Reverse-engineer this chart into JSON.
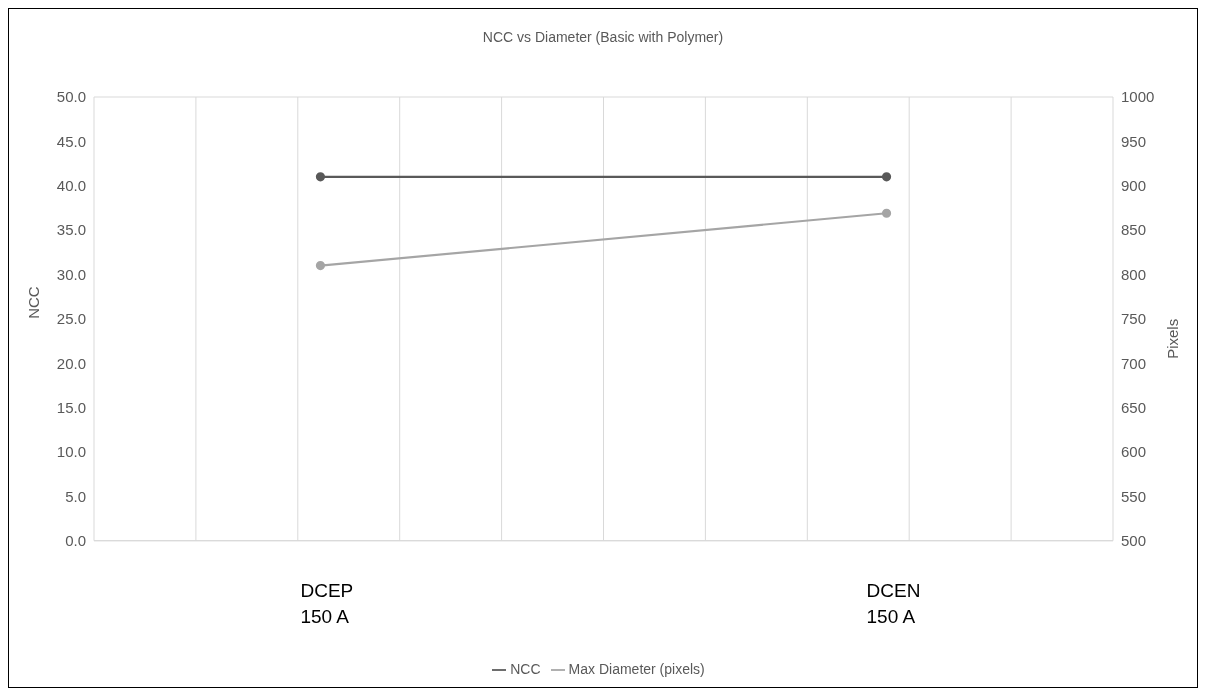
{
  "chart_data": {
    "type": "line",
    "title": "NCC vs Diameter (Basic with Polymer)",
    "categories": [
      null,
      null,
      "DCEP 150 A",
      null,
      null,
      null,
      null,
      "DCEN 150 A",
      null,
      null
    ],
    "series": [
      {
        "name": "NCC",
        "color": "#595959",
        "values": [
          null,
          null,
          41.0,
          null,
          null,
          null,
          null,
          41.0,
          null,
          null
        ]
      },
      {
        "name": "Max Diameter (pixels)",
        "color": "#a5a5a5",
        "axis": "y2",
        "values": [
          null,
          null,
          810,
          null,
          null,
          null,
          null,
          869,
          null,
          null
        ]
      }
    ],
    "ylabel": "NCC",
    "y2label": "Pixels",
    "ylim": [
      0,
      50
    ],
    "yticks": [
      {
        "value": 0,
        "label": "0.0"
      },
      {
        "value": 5,
        "label": "5.0"
      },
      {
        "value": 10,
        "label": "10.0"
      },
      {
        "value": 15,
        "label": "15.0"
      },
      {
        "value": 20,
        "label": "20.0"
      },
      {
        "value": 25,
        "label": "25.0"
      },
      {
        "value": 30,
        "label": "30.0"
      },
      {
        "value": 35,
        "label": "35.0"
      },
      {
        "value": 40,
        "label": "40.0"
      },
      {
        "value": 45,
        "label": "45.0"
      },
      {
        "value": 50,
        "label": "50.0"
      }
    ],
    "y2lim": [
      500,
      1000
    ],
    "y2ticks": [
      500,
      550,
      600,
      650,
      700,
      750,
      800,
      850,
      900,
      950,
      1000
    ],
    "grid": true,
    "legend": "bottom",
    "marker": "circle",
    "line_style": "solid"
  }
}
